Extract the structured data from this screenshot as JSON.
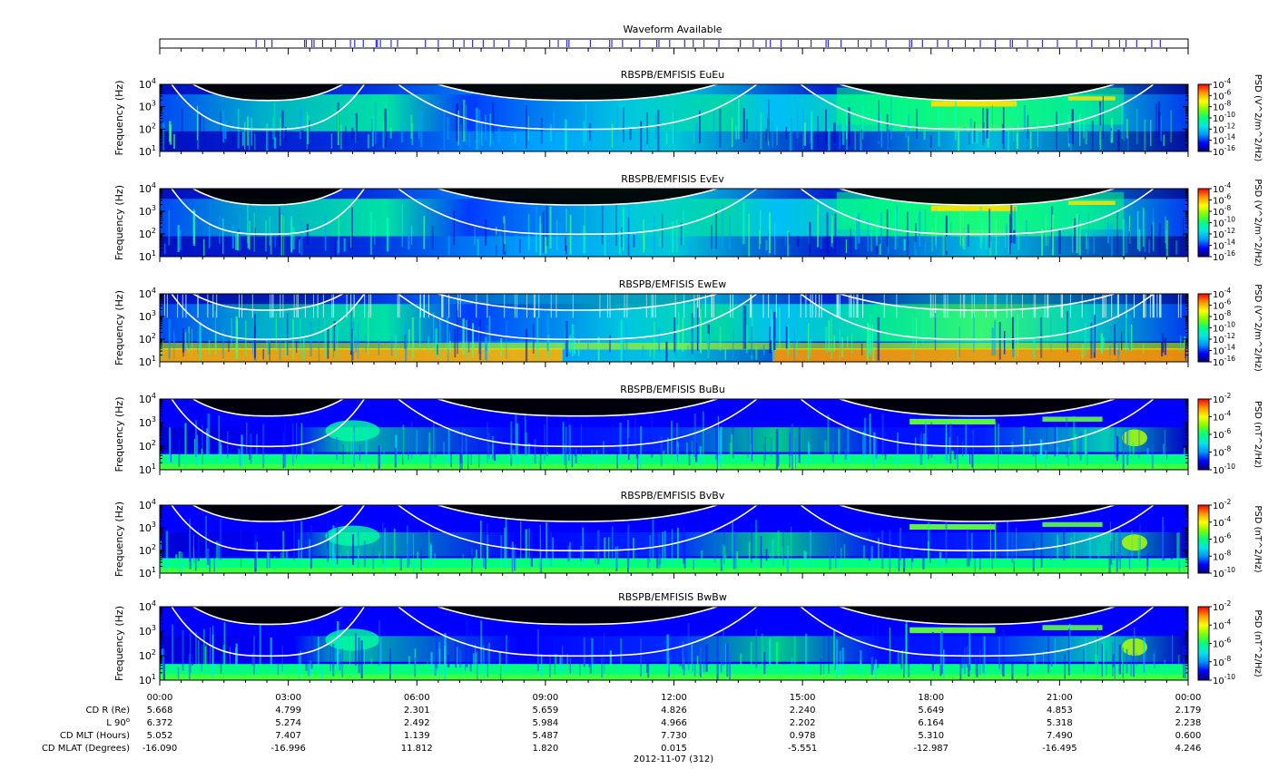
{
  "waveform": {
    "title": "Waveform Available",
    "color": "#2a2aff",
    "marks": [
      2.25,
      2.45,
      2.62,
      3.38,
      3.42,
      3.55,
      3.6,
      3.8,
      4.1,
      4.45,
      4.55,
      4.75,
      5.05,
      5.08,
      5.15,
      5.4,
      5.55,
      6.2,
      6.5,
      6.85,
      7.1,
      7.3,
      7.55,
      7.8,
      8.15,
      8.55,
      9.1,
      9.3,
      9.5,
      9.55,
      10.05,
      10.5,
      10.55,
      10.8,
      11.2,
      11.6,
      11.65,
      11.9,
      12.25,
      12.45,
      12.7,
      13.05,
      13.55,
      13.85,
      14.15,
      14.25,
      14.5,
      14.9,
      15.2,
      15.55,
      15.6,
      15.9,
      16.3,
      16.6,
      16.95,
      17.5,
      17.55,
      17.8,
      18.15,
      18.4,
      18.8,
      19.15,
      19.5,
      19.85,
      19.9,
      20.25,
      20.6,
      20.95,
      21.4,
      21.75,
      22.15,
      22.4,
      22.55,
      22.8,
      23.15,
      23.35
    ]
  },
  "chart_data": [
    {
      "type": "heatmap",
      "title": "RBSPB/EMFISIS  EuEu",
      "ylabel": "Frequency (Hz)",
      "ylim": [
        10,
        10000
      ],
      "yscale": "log",
      "ytick_exponents": [
        "1",
        "2",
        "3",
        "4"
      ],
      "colorbar_label": "PSD (V^2/m^2/Hz)",
      "colorbar_exponents": [
        "-4",
        "-6",
        "-8",
        "-10",
        "-12",
        "-14",
        "-16"
      ],
      "clim": [
        -16,
        -4
      ]
    },
    {
      "type": "heatmap",
      "title": "RBSPB/EMFISIS  EvEv",
      "ylabel": "Frequency (Hz)",
      "ylim": [
        10,
        10000
      ],
      "yscale": "log",
      "ytick_exponents": [
        "1",
        "2",
        "3",
        "4"
      ],
      "colorbar_label": "PSD (V^2/m^2/Hz)",
      "colorbar_exponents": [
        "-4",
        "-6",
        "-8",
        "-10",
        "-12",
        "-14",
        "-16"
      ],
      "clim": [
        -16,
        -4
      ]
    },
    {
      "type": "heatmap",
      "title": "RBSPB/EMFISIS  EwEw",
      "ylabel": "Frequency (Hz)",
      "ylim": [
        10,
        10000
      ],
      "yscale": "log",
      "ytick_exponents": [
        "1",
        "2",
        "3",
        "4"
      ],
      "colorbar_label": "PSD (V^2/m^2/Hz)",
      "colorbar_exponents": [
        "-4",
        "-6",
        "-8",
        "-10",
        "-12",
        "-14",
        "-16"
      ],
      "clim": [
        -16,
        -4
      ]
    },
    {
      "type": "heatmap",
      "title": "RBSPB/EMFISIS  BuBu",
      "ylabel": "Frequency (Hz)",
      "ylim": [
        10,
        10000
      ],
      "yscale": "log",
      "ytick_exponents": [
        "1",
        "2",
        "3",
        "4"
      ],
      "colorbar_label": "PSD (nT^2/Hz)",
      "colorbar_exponents": [
        "-2",
        "-4",
        "-6",
        "-8",
        "-10"
      ],
      "clim": [
        -10,
        -2
      ]
    },
    {
      "type": "heatmap",
      "title": "RBSPB/EMFISIS  BvBv",
      "ylabel": "Frequency (Hz)",
      "ylim": [
        10,
        10000
      ],
      "yscale": "log",
      "ytick_exponents": [
        "1",
        "2",
        "3",
        "4"
      ],
      "colorbar_label": "PSD (nT^2/Hz)",
      "colorbar_exponents": [
        "-2",
        "-4",
        "-6",
        "-8",
        "-10"
      ],
      "clim": [
        -10,
        -2
      ]
    },
    {
      "type": "heatmap",
      "title": "RBSPB/EMFISIS  BwBw",
      "ylabel": "Frequency (Hz)",
      "ylim": [
        10,
        10000
      ],
      "yscale": "log",
      "ytick_exponents": [
        "1",
        "2",
        "3",
        "4"
      ],
      "colorbar_label": "PSD (nT^2/Hz)",
      "colorbar_exponents": [
        "-2",
        "-4",
        "-6",
        "-8",
        "-10"
      ],
      "clim": [
        -10,
        -2
      ]
    }
  ],
  "time_axis": {
    "xlim_hours": [
      0,
      24
    ],
    "tick_labels": [
      "00:00",
      "03:00",
      "06:00",
      "09:00",
      "12:00",
      "15:00",
      "18:00",
      "21:00",
      "00:00"
    ],
    "date_label": "2012-11-07 (312)"
  },
  "ephemeris": {
    "rows": [
      {
        "label": "CD R (Re)",
        "values": [
          "5.668",
          "4.799",
          "2.301",
          "5.659",
          "4.826",
          "2.240",
          "5.649",
          "4.853",
          "2.179"
        ]
      },
      {
        "label": "L 90",
        "label_sup": "o",
        "values": [
          "6.372",
          "5.274",
          "2.492",
          "5.984",
          "4.966",
          "2.202",
          "6.164",
          "5.318",
          "2.238"
        ]
      },
      {
        "label": "CD MLT (Hours)",
        "values": [
          "5.052",
          "7.407",
          "1.139",
          "5.487",
          "7.730",
          "0.978",
          "5.310",
          "7.490",
          "0.600"
        ]
      },
      {
        "label": "CD MLAT (Degrees)",
        "values": [
          "-16.090",
          "-16.996",
          "11.812",
          "1.820",
          "0.015",
          "-5.551",
          "-12.987",
          "-16.495",
          "4.246"
        ]
      }
    ]
  },
  "colors": {
    "colormap": [
      "#08006e",
      "#0000ff",
      "#0096ff",
      "#00e6e6",
      "#00ff7f",
      "#7fff00",
      "#ffff00",
      "#ff9600",
      "#ff0000"
    ],
    "background_no_data": "#000000",
    "cyclotron_curves": "#ffffff"
  }
}
